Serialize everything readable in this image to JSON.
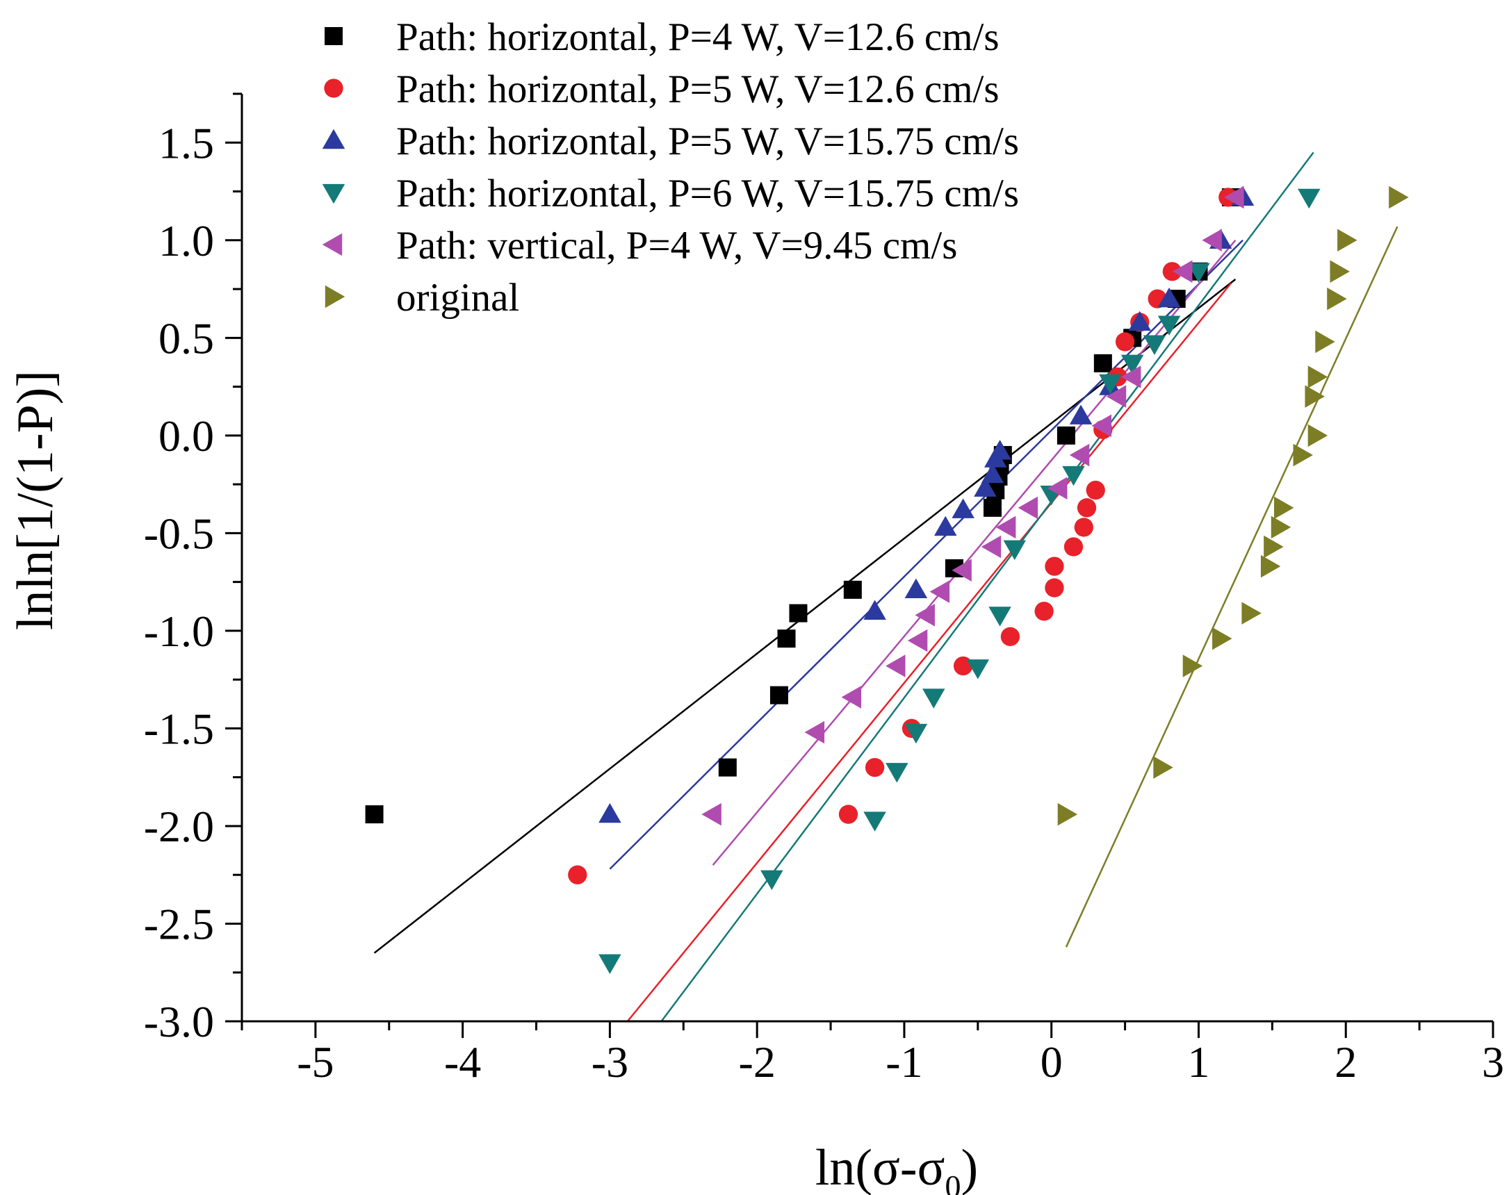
{
  "chart_data": {
    "type": "scatter",
    "title": "",
    "xlabel": "ln(σ-σ",
    "xlabel_subscript": "0",
    "xlabel_close": ")",
    "ylabel": "lnln[1/(1-P)]",
    "xlim": [
      -5.5,
      3.0
    ],
    "ylim": [
      -3.0,
      1.75
    ],
    "x_ticks": [
      -5,
      -4,
      -3,
      -2,
      -1,
      0,
      1,
      2,
      3
    ],
    "x_tick_labels": [
      "-5",
      "-4",
      "-3",
      "-2",
      "-1",
      "0",
      "1",
      "2",
      "3"
    ],
    "y_ticks": [
      -3.0,
      -2.5,
      -2.0,
      -1.5,
      -1.0,
      -0.5,
      0.0,
      0.5,
      1.0,
      1.5
    ],
    "y_tick_labels": [
      "-3.0",
      "-2.5",
      "-2.0",
      "-1.5",
      "-1.0",
      "-0.5",
      "0.0",
      "0.5",
      "1.0",
      "1.5"
    ],
    "legend_position": "top-left",
    "series": [
      {
        "name": "Path: horizontal, P=4 W, V=12.6 cm/s",
        "marker": "square",
        "color": "#000000",
        "points": [
          [
            -4.6,
            -1.94
          ],
          [
            -2.2,
            -1.7
          ],
          [
            -1.85,
            -1.33
          ],
          [
            -1.8,
            -1.04
          ],
          [
            -1.72,
            -0.91
          ],
          [
            -1.35,
            -0.79
          ],
          [
            -0.66,
            -0.68
          ],
          [
            -0.4,
            -0.37
          ],
          [
            -0.38,
            -0.28
          ],
          [
            -0.36,
            -0.21
          ],
          [
            -0.35,
            -0.15
          ],
          [
            -0.33,
            -0.1
          ],
          [
            0.1,
            0.0
          ],
          [
            0.35,
            0.37
          ],
          [
            0.55,
            0.5
          ],
          [
            0.85,
            0.7
          ],
          [
            1.0,
            0.84
          ],
          [
            1.22,
            1.22
          ]
        ],
        "fit": [
          [
            -4.6,
            -2.65
          ],
          [
            1.25,
            0.8
          ]
        ]
      },
      {
        "name": "Path: horizontal, P=5 W, V=12.6 cm/s",
        "marker": "circle",
        "color": "#e8212a",
        "points": [
          [
            -3.22,
            -2.25
          ],
          [
            -1.38,
            -1.94
          ],
          [
            -1.2,
            -1.7
          ],
          [
            -0.95,
            -1.5
          ],
          [
            -0.6,
            -1.18
          ],
          [
            -0.28,
            -1.03
          ],
          [
            -0.05,
            -0.9
          ],
          [
            0.02,
            -0.78
          ],
          [
            0.02,
            -0.67
          ],
          [
            0.15,
            -0.57
          ],
          [
            0.22,
            -0.47
          ],
          [
            0.24,
            -0.37
          ],
          [
            0.3,
            -0.28
          ],
          [
            0.35,
            0.03
          ],
          [
            0.45,
            0.3
          ],
          [
            0.5,
            0.48
          ],
          [
            0.6,
            0.58
          ],
          [
            0.72,
            0.7
          ],
          [
            0.82,
            0.84
          ],
          [
            1.2,
            1.22
          ]
        ],
        "fit": [
          [
            -2.88,
            -3.0
          ],
          [
            1.22,
            0.78
          ]
        ]
      },
      {
        "name": "Path: horizontal, P=5 W, V=15.75 cm/s",
        "marker": "triangle-up",
        "color": "#2b3a9e",
        "points": [
          [
            -3.0,
            -1.94
          ],
          [
            -1.2,
            -0.9
          ],
          [
            -0.92,
            -0.79
          ],
          [
            -0.72,
            -0.47
          ],
          [
            -0.6,
            -0.38
          ],
          [
            -0.45,
            -0.27
          ],
          [
            -0.4,
            -0.2
          ],
          [
            -0.38,
            -0.12
          ],
          [
            -0.35,
            -0.08
          ],
          [
            0.2,
            0.1
          ],
          [
            0.4,
            0.25
          ],
          [
            0.6,
            0.58
          ],
          [
            0.8,
            0.7
          ],
          [
            1.15,
            1.0
          ],
          [
            1.3,
            1.22
          ]
        ],
        "fit": [
          [
            -3.0,
            -2.22
          ],
          [
            1.3,
            1.0
          ]
        ]
      },
      {
        "name": "Path: horizontal, P=6 W, V=15.75 cm/s",
        "marker": "triangle-down",
        "color": "#147a78",
        "points": [
          [
            -3.0,
            -2.7
          ],
          [
            -1.9,
            -2.27
          ],
          [
            -1.2,
            -1.97
          ],
          [
            -1.05,
            -1.72
          ],
          [
            -0.92,
            -1.52
          ],
          [
            -0.8,
            -1.34
          ],
          [
            -0.5,
            -1.19
          ],
          [
            -0.35,
            -0.92
          ],
          [
            -0.25,
            -0.58
          ],
          [
            0.0,
            -0.3
          ],
          [
            0.15,
            -0.2
          ],
          [
            0.4,
            0.27
          ],
          [
            0.55,
            0.37
          ],
          [
            0.7,
            0.47
          ],
          [
            0.8,
            0.57
          ],
          [
            1.0,
            0.84
          ],
          [
            1.75,
            1.22
          ]
        ],
        "fit": [
          [
            -2.65,
            -3.0
          ],
          [
            1.78,
            1.45
          ]
        ]
      },
      {
        "name": "Path: vertical, P=4 W, V=9.45 cm/s",
        "marker": "triangle-left",
        "color": "#b04cb0",
        "points": [
          [
            -2.3,
            -1.94
          ],
          [
            -1.6,
            -1.52
          ],
          [
            -1.35,
            -1.34
          ],
          [
            -1.05,
            -1.18
          ],
          [
            -0.9,
            -1.05
          ],
          [
            -0.85,
            -0.92
          ],
          [
            -0.75,
            -0.8
          ],
          [
            -0.6,
            -0.69
          ],
          [
            -0.4,
            -0.57
          ],
          [
            -0.3,
            -0.47
          ],
          [
            -0.15,
            -0.37
          ],
          [
            0.05,
            -0.27
          ],
          [
            0.2,
            -0.1
          ],
          [
            0.35,
            0.05
          ],
          [
            0.45,
            0.2
          ],
          [
            0.55,
            0.3
          ],
          [
            0.9,
            0.84
          ],
          [
            1.1,
            1.0
          ],
          [
            1.25,
            1.22
          ]
        ],
        "fit": [
          [
            -2.3,
            -2.2
          ],
          [
            1.25,
            1.0
          ]
        ]
      },
      {
        "name": "original",
        "marker": "triangle-right",
        "color": "#7d7d26",
        "points": [
          [
            0.1,
            -1.94
          ],
          [
            0.75,
            -1.7
          ],
          [
            0.95,
            -1.18
          ],
          [
            1.15,
            -1.04
          ],
          [
            1.35,
            -0.91
          ],
          [
            1.48,
            -0.67
          ],
          [
            1.5,
            -0.57
          ],
          [
            1.55,
            -0.47
          ],
          [
            1.57,
            -0.37
          ],
          [
            1.7,
            -0.1
          ],
          [
            1.8,
            0.0
          ],
          [
            1.78,
            0.2
          ],
          [
            1.8,
            0.3
          ],
          [
            1.85,
            0.48
          ],
          [
            1.93,
            0.7
          ],
          [
            1.95,
            0.84
          ],
          [
            2.0,
            1.0
          ],
          [
            2.35,
            1.22
          ]
        ],
        "fit": [
          [
            0.1,
            -2.62
          ],
          [
            2.35,
            1.07
          ]
        ]
      }
    ]
  }
}
